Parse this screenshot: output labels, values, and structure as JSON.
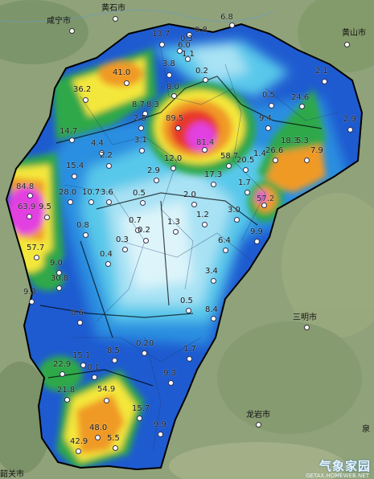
{
  "cities": [
    {
      "id": "xianning",
      "name": "咸宁市"
    },
    {
      "id": "huangshi",
      "name": "黄石市"
    },
    {
      "id": "huangshan",
      "name": "黄山市"
    },
    {
      "id": "sanming",
      "name": "三明市"
    },
    {
      "id": "longyan",
      "name": "龙岩市"
    },
    {
      "id": "shaoguan",
      "name": "韶关市"
    },
    {
      "id": "quan",
      "name": "泉"
    }
  ],
  "rainfall_values": [
    "6.8",
    "13.7",
    "0.8",
    "0.3",
    "6.0",
    "1.1",
    "3.8",
    "41.0",
    "0.2",
    "36.2",
    "8.0",
    "2.1",
    "0.5",
    "8.7",
    "8.3",
    "24.6",
    "2.5",
    "89.5",
    "9.4",
    "2.9",
    "14.7",
    "81.4",
    "4.4",
    "3.1",
    "26.6",
    "18.3",
    "5.3",
    "7.9",
    "2.2",
    "58.7",
    "12.0",
    "20.5",
    "1.4",
    "15.4",
    "2.9",
    "17.3",
    "1.7",
    "84.8",
    "28.0",
    "10.7",
    "3.6",
    "0.5",
    "2.0",
    "57.2",
    "63.9",
    "9.5",
    "1.2",
    "0.7",
    "3.0",
    "0.8",
    "1.3",
    "0.2",
    "9.9",
    "0.3",
    "6.4",
    "57.7",
    "0.4",
    "9.0",
    "3.4",
    "30.8",
    "9.3",
    "0.5",
    "0.6",
    "8.4",
    "15.1",
    "8.5",
    "0.20",
    "1.7",
    "22.9",
    "0.1",
    "9.3",
    "21.8",
    "54.9",
    "15.7",
    "48.0",
    "9.9",
    "5.5",
    "42.9"
  ],
  "colors": {
    "lightest": "#dcf4fa",
    "pale": "#a8e2f4",
    "light_blue": "#59c8ea",
    "mid_blue": "#2a8fe0",
    "deep_blue": "#1e5bd0",
    "green": "#2fa84a",
    "yellow": "#f4e73a",
    "orange": "#f09a28",
    "red": "#e8372c",
    "magenta": "#e23fe0"
  },
  "watermark": {
    "text": "气象家园",
    "sub": "GETAX.HOMEWEB.NET"
  }
}
